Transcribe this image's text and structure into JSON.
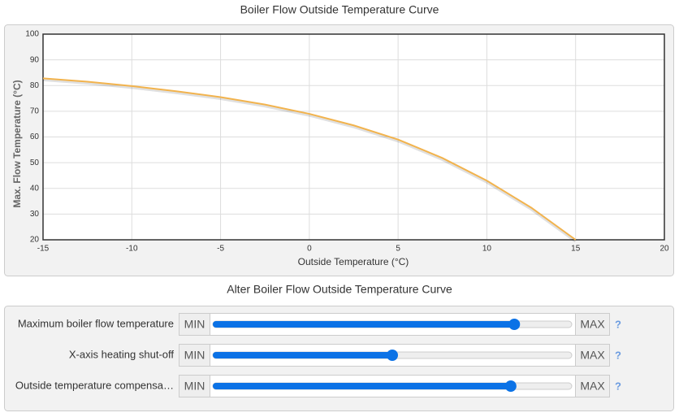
{
  "chart_data": {
    "type": "line",
    "title": "Boiler Flow Outside Temperature Curve",
    "x_label": "Outside Temperature (°C)",
    "y_label": "Max. Flow Temperature (°C)",
    "x": [
      -15,
      -12.5,
      -10,
      -7.5,
      -5,
      -2.5,
      0,
      2.5,
      5,
      7.5,
      10,
      12.5,
      15
    ],
    "values": [
      82.8,
      81.5,
      79.8,
      77.8,
      75.5,
      72.6,
      69,
      64.5,
      59,
      51.8,
      43,
      32.5,
      20
    ],
    "color": "#f2b34d",
    "xlim": [
      -15,
      20
    ],
    "xticks": [
      -15,
      -10,
      -5,
      0,
      5,
      10,
      15,
      20
    ],
    "ylim": [
      20,
      100
    ],
    "yticks": [
      20,
      30,
      40,
      50,
      60,
      70,
      80,
      90,
      100
    ],
    "grid": true
  },
  "controls": {
    "title": "Alter Boiler Flow Outside Temperature Curve",
    "sliders": [
      {
        "label": "Maximum boiler flow temperature",
        "min_label": "MIN",
        "max_label": "MAX",
        "help": "?",
        "value": 0.84
      },
      {
        "label": "X-axis heating shut-off",
        "min_label": "MIN",
        "max_label": "MAX",
        "help": "?",
        "value": 0.5
      },
      {
        "label": "Outside temperature compensa…",
        "min_label": "MIN",
        "max_label": "MAX",
        "help": "?",
        "value": 0.83
      }
    ]
  }
}
